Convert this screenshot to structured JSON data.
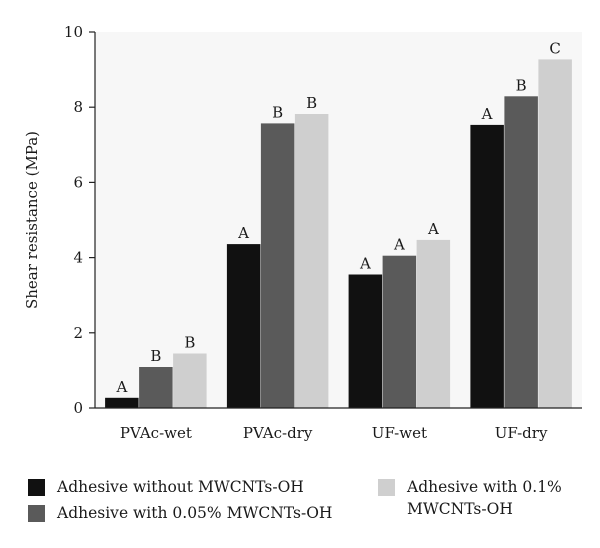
{
  "chart_data": {
    "type": "bar",
    "ylabel": "Shear resistance (MPa)",
    "ylim": [
      0,
      10
    ],
    "yticks": [
      0,
      2,
      4,
      6,
      8,
      10
    ],
    "categories": [
      "PVAc-wet",
      "PVAc-dry",
      "UF-wet",
      "UF-dry"
    ],
    "series": [
      {
        "name": "Adhesive without MWCNTs-OH",
        "color": "#111111",
        "values": [
          0.27,
          4.36,
          3.55,
          7.53
        ],
        "letters": [
          "A",
          "A",
          "A",
          "A"
        ]
      },
      {
        "name": "Adhesive with 0.05% MWCNTs-OH",
        "color": "#5a5a5a",
        "values": [
          1.09,
          7.57,
          4.05,
          8.29
        ],
        "letters": [
          "B",
          "B",
          "A",
          "B"
        ]
      },
      {
        "name": "Adhesive with 0.1% MWCNTs-OH",
        "color": "#cfcfcf",
        "values": [
          1.45,
          7.82,
          4.47,
          9.27
        ],
        "letters": [
          "B",
          "B",
          "A",
          "C"
        ]
      }
    ],
    "grid": false,
    "legend_position": "bottom"
  }
}
